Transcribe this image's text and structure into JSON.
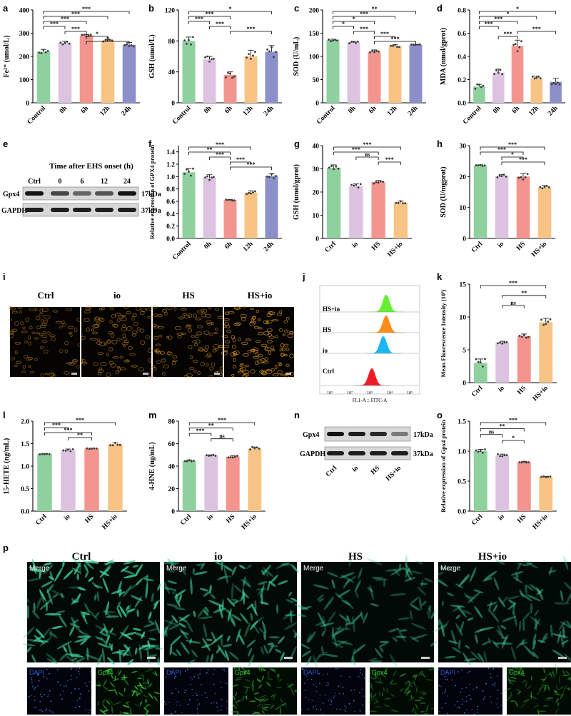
{
  "colors": {
    "green": "#8fd19e",
    "lilac": "#dcc3e0",
    "salmon": "#f3958e",
    "peach": "#f7c486",
    "slate": "#8c8fc9",
    "dot": "#3a3a3a",
    "fitc_green": "#66ee33",
    "fitc_orange": "#ff8c1a",
    "fitc_cyan": "#1ab8ee",
    "fitc_red": "#ee1c24",
    "ifc_green": "#3fd39a",
    "dapi_blue": "#2a5bd8"
  },
  "letters": {
    "a": "a",
    "b": "b",
    "c": "c",
    "d": "d",
    "e": "e",
    "f": "f",
    "g": "g",
    "h": "h",
    "i": "i",
    "j": "j",
    "k": "k",
    "l": "l",
    "m": "m",
    "n": "n",
    "o": "o",
    "p": "p"
  },
  "chart_data": [
    {
      "id": "a",
      "type": "bar",
      "ylabel": "Fe²⁺ (umol/L)",
      "ylim": [
        0,
        400
      ],
      "ticks": [
        0,
        100,
        200,
        300,
        400
      ],
      "categories": [
        "Control",
        "0h",
        "6h",
        "12h",
        "24h"
      ],
      "values": [
        220,
        258,
        290,
        268,
        250
      ],
      "errors": [
        10,
        7,
        4,
        5,
        10
      ],
      "sig": [
        [
          "***",
          0,
          4
        ],
        [
          "***",
          0,
          3
        ],
        [
          "***",
          0,
          2
        ],
        [
          "***",
          0,
          1
        ],
        [
          "***",
          1,
          2
        ],
        [
          "*",
          2,
          3
        ],
        [
          "*",
          2,
          4
        ]
      ]
    },
    {
      "id": "b",
      "type": "bar",
      "ylabel": "GSH (umol/L)",
      "ylim": [
        0,
        120
      ],
      "ticks": [
        0,
        40,
        80,
        120
      ],
      "categories": [
        "Control",
        "0h",
        "6h",
        "12h",
        "24h"
      ],
      "values": [
        80,
        56,
        36,
        60,
        66
      ],
      "errors": [
        5,
        4,
        4,
        8,
        8
      ],
      "sig": [
        [
          "*",
          0,
          4
        ],
        [
          "***",
          0,
          2
        ],
        [
          "***",
          0,
          1
        ],
        [
          "***",
          1,
          2
        ],
        [
          "***",
          2,
          4
        ]
      ]
    },
    {
      "id": "c",
      "type": "bar",
      "ylabel": "SOD (U/mL)",
      "ylim": [
        0,
        200
      ],
      "ticks": [
        0,
        50,
        100,
        150,
        200
      ],
      "categories": [
        "Control",
        "0h",
        "6h",
        "12h",
        "24h"
      ],
      "values": [
        135,
        130,
        110,
        122,
        125
      ],
      "errors": [
        2,
        2,
        4,
        3,
        1
      ],
      "sig": [
        [
          "**",
          0,
          4
        ],
        [
          "***",
          0,
          3
        ],
        [
          "*",
          0,
          2
        ],
        [
          "*",
          0,
          1
        ],
        [
          "***",
          1,
          2
        ],
        [
          "***",
          2,
          3
        ],
        [
          "***",
          2,
          4
        ]
      ]
    },
    {
      "id": "d",
      "type": "bar",
      "ylabel": "MDA (nmol/gprot)",
      "ylim": [
        0,
        0.8
      ],
      "ticks": [
        0.0,
        0.2,
        0.4,
        0.6,
        0.8
      ],
      "categories": [
        "Control",
        "0h",
        "6h",
        "12h",
        "24h"
      ],
      "values": [
        0.14,
        0.26,
        0.49,
        0.21,
        0.18
      ],
      "errors": [
        0.02,
        0.03,
        0.05,
        0.02,
        0.03
      ],
      "sig": [
        [
          "*",
          0,
          4
        ],
        [
          "*",
          0,
          3
        ],
        [
          "***",
          0,
          2
        ],
        [
          "***",
          0,
          1
        ],
        [
          "***",
          2,
          4
        ],
        [
          "***",
          1,
          2
        ]
      ]
    },
    {
      "id": "f",
      "type": "bar",
      "ylabel": "Relative expression of GPX4 protein",
      "ylim": [
        0,
        1.5
      ],
      "ticks": [
        0.0,
        0.2,
        0.4,
        0.6,
        0.8,
        1.0,
        1.2,
        1.4
      ],
      "categories": [
        "Control",
        "0h",
        "6h",
        "12h",
        "24h"
      ],
      "values": [
        1.07,
        0.98,
        0.62,
        0.74,
        1.01
      ],
      "errors": [
        0.06,
        0.05,
        0.01,
        0.03,
        0.04
      ],
      "sig": [
        [
          "***",
          0,
          3
        ],
        [
          "**",
          0,
          2
        ],
        [
          "***",
          1,
          2
        ],
        [
          "***",
          2,
          3
        ],
        [
          "***",
          2,
          4
        ]
      ]
    },
    {
      "id": "g",
      "type": "bar",
      "ylabel": "GSH (umol/gprot)",
      "ylim": [
        0,
        40
      ],
      "ticks": [
        0,
        10,
        20,
        30,
        40
      ],
      "categories": [
        "Ctrl",
        "io",
        "HS",
        "HS+io"
      ],
      "values": [
        30.5,
        22.5,
        24.3,
        15.5
      ],
      "errors": [
        1.2,
        1.0,
        0.7,
        0.6
      ],
      "sig": [
        [
          "***",
          0,
          3
        ],
        [
          "***",
          0,
          2
        ],
        [
          "ns",
          1,
          2
        ],
        [
          "***",
          2,
          3
        ]
      ]
    },
    {
      "id": "h",
      "type": "bar",
      "ylabel": "SOD (U/mgprot)",
      "ylim": [
        0,
        30
      ],
      "ticks": [
        0,
        10,
        20,
        30
      ],
      "categories": [
        "Ctrl",
        "io",
        "HS",
        "HS+io"
      ],
      "values": [
        23.5,
        20.2,
        20.0,
        16.5
      ],
      "errors": [
        0.3,
        0.5,
        1.0,
        0.6
      ],
      "sig": [
        [
          "***",
          0,
          3
        ],
        [
          "***",
          0,
          2
        ],
        [
          "*",
          1,
          2
        ],
        [
          "***",
          1,
          3
        ]
      ]
    },
    {
      "id": "k",
      "type": "bar",
      "ylabel": "Mean Fluorescence Intensity (10³)",
      "ylim": [
        0,
        15
      ],
      "ticks": [
        0,
        5,
        10,
        15
      ],
      "categories": [
        "Ctrl",
        "io",
        "HS",
        "HS+io"
      ],
      "values": [
        3.0,
        6.1,
        7.1,
        9.2
      ],
      "errors": [
        0.6,
        0.2,
        0.3,
        0.6
      ],
      "sig": [
        [
          "***",
          0,
          3
        ],
        [
          "**",
          1,
          3
        ],
        [
          "ns",
          1,
          2
        ]
      ]
    },
    {
      "id": "l",
      "type": "bar",
      "ylabel": "15-HETE (ng/mL)",
      "ylim": [
        0,
        2.0
      ],
      "ticks": [
        0.0,
        0.5,
        1.0,
        1.5,
        2.0
      ],
      "categories": [
        "Ctrl",
        "io",
        "HS",
        "HS+io"
      ],
      "values": [
        1.27,
        1.35,
        1.39,
        1.49
      ],
      "errors": [
        0.01,
        0.03,
        0.01,
        0.03
      ],
      "sig": [
        [
          "***",
          0,
          3
        ],
        [
          "***",
          0,
          1
        ],
        [
          "***",
          0,
          2
        ],
        [
          "**",
          1,
          2
        ]
      ]
    },
    {
      "id": "m",
      "type": "bar",
      "ylabel": "4-HNE (ng/mL)",
      "ylim": [
        0,
        80
      ],
      "ticks": [
        0,
        20,
        40,
        60,
        80
      ],
      "categories": [
        "Ctrl",
        "io",
        "HS",
        "HS+io"
      ],
      "values": [
        44.5,
        49.5,
        48.5,
        55.5
      ],
      "errors": [
        1.0,
        0.6,
        0.8,
        1.5
      ],
      "sig": [
        [
          "***",
          0,
          3
        ],
        [
          "**",
          0,
          2
        ],
        [
          "***",
          0,
          1
        ],
        [
          "ns",
          1,
          2
        ]
      ]
    },
    {
      "id": "o",
      "type": "bar",
      "ylabel": "Relative expression of Gpx4 protein",
      "ylim": [
        0,
        1.5
      ],
      "ticks": [
        0.0,
        0.5,
        1.0,
        1.5
      ],
      "categories": [
        "Ctrl",
        "io",
        "HS",
        "HS+io"
      ],
      "values": [
        1.0,
        0.93,
        0.82,
        0.57
      ],
      "errors": [
        0.03,
        0.02,
        0.01,
        0.01
      ],
      "sig": [
        [
          "***",
          0,
          3
        ],
        [
          "**",
          0,
          2
        ],
        [
          "ns",
          0,
          1
        ],
        [
          "*",
          1,
          2
        ]
      ]
    }
  ],
  "blot_e": {
    "title": "Time after EHS onset (h)",
    "lanes": [
      "Ctrl",
      "0",
      "6",
      "12",
      "24"
    ],
    "rows": [
      "Gpx4",
      "GAPDH"
    ],
    "sizes": [
      "17kDa",
      "37kDa"
    ],
    "gpx4_intensity": [
      0.95,
      0.7,
      0.55,
      0.65,
      0.95
    ],
    "gapdh_intensity": [
      0.9,
      0.9,
      0.9,
      0.9,
      0.9
    ]
  },
  "blot_n": {
    "lanes": [
      "Ctrl",
      "io",
      "HS",
      "HS+io"
    ],
    "rows": [
      "Gpx4",
      "GAPDH"
    ],
    "sizes": [
      "17kDa",
      "37kDa"
    ],
    "gpx4_intensity": [
      0.95,
      0.9,
      0.85,
      0.45
    ],
    "gapdh_intensity": [
      0.9,
      0.9,
      0.9,
      0.9
    ]
  },
  "panel_i": {
    "labels": [
      "Ctrl",
      "io",
      "HS",
      "HS+io"
    ],
    "density": [
      0.35,
      0.45,
      0.5,
      0.8
    ]
  },
  "panel_j": {
    "tracks": [
      "HS+io",
      "HS",
      "io",
      "Ctrl"
    ],
    "xlabel": "FL1-A :: FITC-A",
    "ticks": [
      "10¹",
      "10²",
      "10³",
      "10⁴",
      "10⁵"
    ]
  },
  "panel_p": {
    "groups": [
      "Ctrl",
      "io",
      "HS",
      "HS+io"
    ],
    "merge_label": "Merge",
    "dapi_label": "DAPI",
    "gpx4_label": "Gpx4",
    "brightness": [
      1.0,
      0.75,
      0.4,
      0.5
    ]
  }
}
